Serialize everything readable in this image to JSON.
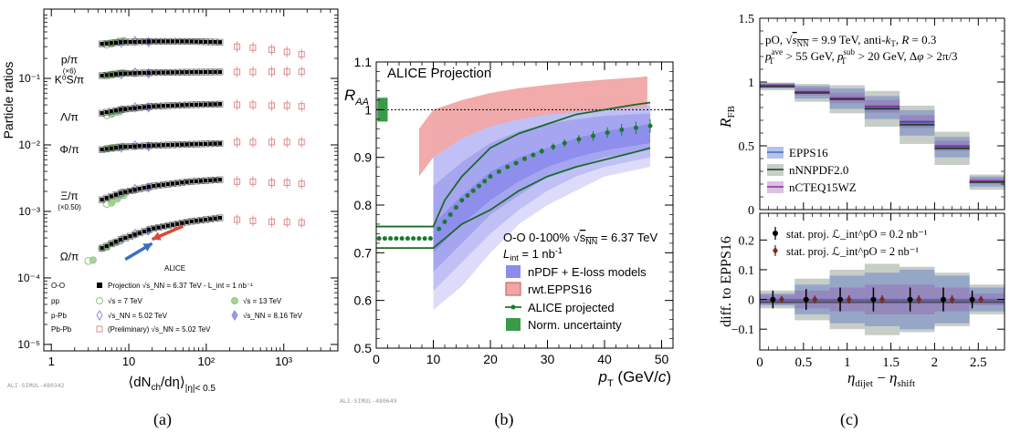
{
  "captions": [
    "(a)",
    "(b)",
    "(c)"
  ],
  "chart_data": [
    {
      "type": "scatter",
      "panel": "(a)",
      "ylabel": "Particle ratios",
      "xlabel": "⟨dN_ch/dη⟩_|η|< 0.5",
      "x_axis_text": {
        "main": "⟨dN",
        "sub1": "ch",
        "mid": "/dη⟩",
        "sub2": "|η|< 0.5"
      },
      "xscale": "log",
      "yscale": "log",
      "xlim": [
        0.8,
        5000
      ],
      "ylim": [
        8e-06,
        1.1
      ],
      "xticks": [
        {
          "v": 1,
          "label": "1"
        },
        {
          "v": 10,
          "label": "10"
        },
        {
          "v": 100,
          "label": "10²"
        },
        {
          "v": 1000,
          "label": "10³"
        }
      ],
      "yticks": [
        {
          "v": 1e-05,
          "label": "10⁻⁵"
        },
        {
          "v": 0.0001,
          "label": "10⁻⁴"
        },
        {
          "v": 0.001,
          "label": "10⁻³"
        },
        {
          "v": 0.01,
          "label": "10⁻²"
        },
        {
          "v": 0.1,
          "label": "10⁻¹"
        }
      ],
      "species_labels": [
        {
          "text": "p/π",
          "sub": "(×6)",
          "y": 0.19
        },
        {
          "text": "K⁰S/π",
          "sub": "",
          "y": 0.095
        },
        {
          "text": "Λ/π",
          "sub": "",
          "y": 0.026
        },
        {
          "text": "Φ/π",
          "sub": "",
          "y": 0.0085
        },
        {
          "text": "Ξ/π",
          "sub": "(×0.50)",
          "y": 0.0017
        },
        {
          "text": "Ω/π",
          "sub": "",
          "y": 0.00021
        }
      ],
      "bands": [
        {
          "name": "p/π",
          "pp": [
            [
              5.2,
              0.32
            ],
            [
              6.2,
              0.34
            ],
            [
              7.5,
              0.36
            ]
          ],
          "proj": [
            [
              4.5,
              0.33
            ],
            [
              8,
              0.35
            ],
            [
              20,
              0.36
            ],
            [
              60,
              0.36
            ],
            [
              150,
              0.35
            ]
          ],
          "pbpb": [
            [
              250,
              0.3
            ],
            [
              400,
              0.29
            ],
            [
              700,
              0.27
            ],
            [
              1100,
              0.25
            ],
            [
              1700,
              0.23
            ]
          ]
        },
        {
          "name": "K0S/π",
          "pp": [
            [
              5.2,
              0.11
            ],
            [
              6.2,
              0.115
            ],
            [
              7.5,
              0.118
            ]
          ],
          "proj": [
            [
              4.5,
              0.11
            ],
            [
              8,
              0.118
            ],
            [
              20,
              0.122
            ],
            [
              60,
              0.124
            ],
            [
              150,
              0.125
            ]
          ],
          "pbpb": [
            [
              250,
              0.125
            ],
            [
              400,
              0.125
            ],
            [
              700,
              0.126
            ],
            [
              1100,
              0.126
            ],
            [
              1700,
              0.126
            ]
          ]
        },
        {
          "name": "Λ/π",
          "pp": [
            [
              5.2,
              0.028
            ],
            [
              6.2,
              0.03
            ],
            [
              7.5,
              0.033
            ]
          ],
          "proj": [
            [
              4.5,
              0.03
            ],
            [
              8,
              0.034
            ],
            [
              20,
              0.038
            ],
            [
              60,
              0.04
            ],
            [
              150,
              0.041
            ]
          ],
          "pbpb": [
            [
              250,
              0.04
            ],
            [
              400,
              0.04
            ],
            [
              700,
              0.039
            ],
            [
              1100,
              0.039
            ],
            [
              1700,
              0.038
            ]
          ]
        },
        {
          "name": "Φ/π",
          "pp": [
            [
              5.2,
              0.0088
            ],
            [
              6.2,
              0.009
            ],
            [
              7.5,
              0.0092
            ]
          ],
          "proj": [
            [
              4.5,
              0.0085
            ],
            [
              8,
              0.0093
            ],
            [
              20,
              0.0098
            ],
            [
              60,
              0.0102
            ],
            [
              150,
              0.0105
            ]
          ],
          "pbpb": [
            [
              250,
              0.011
            ],
            [
              400,
              0.011
            ],
            [
              700,
              0.011
            ],
            [
              1100,
              0.011
            ],
            [
              1700,
              0.011
            ]
          ]
        },
        {
          "name": "Ξ/π",
          "pp": [
            [
              5.2,
              0.0013
            ],
            [
              6.2,
              0.0015
            ],
            [
              7.5,
              0.0017
            ]
          ],
          "proj": [
            [
              4.5,
              0.0015
            ],
            [
              8,
              0.0019
            ],
            [
              20,
              0.0024
            ],
            [
              60,
              0.0028
            ],
            [
              150,
              0.003
            ]
          ],
          "pbpb": [
            [
              250,
              0.0028
            ],
            [
              400,
              0.0028
            ],
            [
              700,
              0.0027
            ],
            [
              1100,
              0.0027
            ],
            [
              1700,
              0.0026
            ]
          ]
        },
        {
          "name": "Ω/π",
          "pp": [
            [
              3,
              0.00018
            ],
            [
              4.5,
              0.00028
            ],
            [
              6,
              0.00033
            ]
          ],
          "proj": [
            [
              4.5,
              0.00028
            ],
            [
              8,
              0.00038
            ],
            [
              20,
              0.00055
            ],
            [
              60,
              0.0007
            ],
            [
              150,
              0.0008
            ]
          ],
          "pbpb": [
            [
              250,
              0.00075
            ],
            [
              400,
              0.00072
            ],
            [
              700,
              0.0007
            ],
            [
              1100,
              0.00069
            ],
            [
              1700,
              0.00068
            ]
          ]
        }
      ],
      "arrows": [
        {
          "color": "#3a6fc4",
          "from": [
            9,
            0.00019
          ],
          "to": [
            20,
            0.00033
          ]
        },
        {
          "color": "#d84a3a",
          "from": [
            50,
            0.0006
          ],
          "to": [
            20,
            0.00038
          ]
        }
      ],
      "legend_title": "ALICE",
      "legend": [
        {
          "label": "O-O",
          "text1": "Projection",
          "text2": "√s_NN = 6.37 TeV  -  L_int = 1 nb⁻¹",
          "marker": "square-filled",
          "color": "#000000"
        },
        {
          "label": "pp",
          "text1": "√s = 7 TeV",
          "marker": "circle-open",
          "color": "#8fc47e",
          "text3": "√s = 13 TeV",
          "marker3": "circle-filled"
        },
        {
          "label": "p-Pb",
          "text1": "√s_NN = 5.02 TeV",
          "marker": "diamond-open",
          "color": "#8a8ae8",
          "text3": "√s_NN = 8.16 TeV",
          "marker3": "diamond-filled"
        },
        {
          "label": "Pb-Pb",
          "text1": "(Preliminary) √s_NN = 5.02 TeV",
          "marker": "square-open",
          "color": "#e08a8a"
        }
      ],
      "watermark": "ALI-SIMUL-480342"
    },
    {
      "type": "line",
      "panel": "(b)",
      "title": "ALICE Projection",
      "ylabel": "R_AA",
      "xlabel": "p_T (GeV/c)",
      "xlim": [
        0,
        52
      ],
      "ylim": [
        0.5,
        1.1
      ],
      "xticks": [
        0,
        10,
        20,
        30,
        40,
        50
      ],
      "yticks": [
        0.5,
        0.6,
        0.7,
        0.8,
        0.9,
        1,
        1.1
      ],
      "ytick_labels": [
        "0.5",
        "0.6",
        "0.7",
        "0.8",
        "0.9",
        "1",
        "1.1"
      ],
      "reference_line": 1.0,
      "annotation": {
        "line1": "O-O 0-100% √s_NN = 6.37 TeV",
        "line2": "L_int = 1 nb⁻¹"
      },
      "norm_uncertainty": {
        "x": [
          0.2,
          2.0
        ],
        "y": [
          0.975,
          1.025
        ],
        "color": "#3a9a4a"
      },
      "rwt_epps16": {
        "x": [
          7.5,
          10,
          15,
          20,
          25,
          30,
          35,
          40,
          45,
          47.5
        ],
        "low": [
          0.86,
          0.9,
          0.94,
          0.965,
          0.98,
          0.99,
          0.995,
          1.0,
          1.003,
          1.005
        ],
        "high": [
          0.96,
          1.0,
          1.02,
          1.035,
          1.045,
          1.052,
          1.058,
          1.063,
          1.067,
          1.07
        ],
        "color": "#f0a6a6"
      },
      "nPDF_bands": [
        {
          "low": [
            0.58,
            0.63,
            0.7,
            0.76,
            0.8,
            0.83,
            0.86,
            0.88
          ],
          "high": [
            0.98,
            0.99,
            1.0,
            1.005,
            1.01,
            1.012,
            1.014,
            1.015
          ]
        },
        {
          "low": [
            0.62,
            0.68,
            0.74,
            0.79,
            0.83,
            0.86,
            0.88,
            0.9
          ],
          "high": [
            0.9,
            0.94,
            0.97,
            0.985,
            0.995,
            1.0,
            1.005,
            1.008
          ]
        },
        {
          "low": [
            0.66,
            0.72,
            0.78,
            0.82,
            0.86,
            0.88,
            0.9,
            0.915
          ],
          "high": [
            0.84,
            0.89,
            0.93,
            0.955,
            0.97,
            0.98,
            0.987,
            0.992
          ]
        }
      ],
      "nPDF_x": [
        10,
        15,
        20,
        25,
        30,
        35,
        40,
        48
      ],
      "curve_x": [
        0,
        10,
        12,
        15,
        20,
        25,
        30,
        35,
        40,
        45,
        48
      ],
      "curve_central": [
        0.73,
        0.73,
        0.77,
        0.8,
        0.85,
        0.88,
        0.91,
        0.93,
        0.95,
        0.96,
        0.965
      ],
      "curve_upper": [
        0.755,
        0.755,
        0.81,
        0.86,
        0.92,
        0.95,
        0.97,
        0.99,
        1.0,
        1.01,
        1.015
      ],
      "curve_lower": [
        0.71,
        0.71,
        0.73,
        0.76,
        0.79,
        0.83,
        0.86,
        0.88,
        0.895,
        0.91,
        0.92
      ],
      "alice_projected": {
        "x": [
          0.5,
          1.5,
          2.5,
          3.5,
          4.5,
          5.5,
          6.5,
          7.5,
          8.5,
          9.5,
          11,
          12,
          13,
          14,
          15,
          16,
          17,
          18,
          19,
          20,
          21.5,
          23,
          24.5,
          26,
          27.5,
          29,
          31,
          33,
          35.5,
          38,
          40.5,
          43,
          45.5,
          48
        ],
        "y": [
          0.73,
          0.73,
          0.73,
          0.73,
          0.73,
          0.73,
          0.73,
          0.73,
          0.73,
          0.73,
          0.75,
          0.765,
          0.78,
          0.795,
          0.81,
          0.82,
          0.83,
          0.84,
          0.85,
          0.86,
          0.87,
          0.88,
          0.888,
          0.897,
          0.905,
          0.913,
          0.922,
          0.93,
          0.938,
          0.945,
          0.952,
          0.958,
          0.962,
          0.966
        ],
        "err": [
          0,
          0,
          0,
          0,
          0,
          0,
          0,
          0,
          0,
          0,
          0,
          0,
          0,
          0,
          0,
          0,
          0,
          0,
          0,
          0,
          0,
          0,
          0,
          0,
          0,
          0.006,
          0.007,
          0.008,
          0.009,
          0.01,
          0.011,
          0.012,
          0.013,
          0.014
        ]
      },
      "legend": [
        {
          "label": "nPDF + E-loss models",
          "color": "#8b8bec",
          "kind": "box"
        },
        {
          "label": "rwt.EPPS16",
          "color": "#f0a6a6",
          "kind": "box-edged"
        },
        {
          "label": "ALICE projected",
          "color": "#1a7a2a",
          "kind": "line-dot"
        },
        {
          "label": "Norm. uncertainty",
          "color": "#3a9a4a",
          "kind": "box"
        }
      ],
      "watermark": "ALI-SIMUL-480649"
    },
    {
      "type": "bar",
      "panel": "(c)",
      "annotation": {
        "line1": "pO, √s_NN = 9.9 TeV, anti-k_T, R = 0.3",
        "line2": "p_T^ave > 55 GeV, p_T^sub > 20 GeV, Δφ > 2π/3"
      },
      "top": {
        "ylabel": "R_FB",
        "ylim": [
          0,
          1.5
        ],
        "yticks": [
          0,
          0.5,
          1,
          1.5
        ],
        "ytick_labels": [
          "0",
          "0.5",
          "1",
          "1.5"
        ],
        "bins": [
          [
            0,
            0.4
          ],
          [
            0.4,
            0.8
          ],
          [
            0.8,
            1.2
          ],
          [
            1.2,
            1.6
          ],
          [
            1.6,
            2.0
          ],
          [
            2.0,
            2.4
          ],
          [
            2.4,
            2.8
          ]
        ],
        "series": [
          {
            "name": "EPPS16",
            "color": "#3a6fc4",
            "values": [
              0.97,
              0.92,
              0.87,
              0.8,
              0.68,
              0.49,
              0.22
            ],
            "band": [
              0.02,
              0.05,
              0.08,
              0.09,
              0.1,
              0.08,
              0.04
            ]
          },
          {
            "name": "nNNPDF2.0",
            "color": "#1a3a1a",
            "values": [
              0.965,
              0.915,
              0.865,
              0.79,
              0.665,
              0.48,
              0.215
            ],
            "band": [
              0.03,
              0.07,
              0.11,
              0.14,
              0.15,
              0.13,
              0.06
            ]
          },
          {
            "name": "nCTEQ15WZ",
            "color": "#8a2a9a",
            "values": [
              0.975,
              0.925,
              0.875,
              0.81,
              0.69,
              0.5,
              0.225
            ],
            "band": [
              0.015,
              0.03,
              0.04,
              0.05,
              0.05,
              0.04,
              0.02
            ]
          }
        ]
      },
      "bottom": {
        "ylabel": "diff. to EPPS16",
        "xlabel": "η_dijet − η_shift",
        "ylim": [
          -0.17,
          0.29
        ],
        "yticks": [
          -0.1,
          0,
          0.1,
          0.2
        ],
        "ytick_labels": [
          "−0.1",
          "0",
          "0.1",
          "0.2"
        ],
        "xlim": [
          0,
          2.8
        ],
        "xticks": [
          0,
          0.5,
          1,
          1.5,
          2,
          2.5
        ],
        "xtick_labels": [
          "0",
          "0.5",
          "1",
          "1.5",
          "2",
          "2.5"
        ],
        "bands": [
          {
            "color": "#3a6fc4",
            "half": [
              0.02,
              0.05,
              0.08,
              0.09,
              0.1,
              0.08,
              0.04
            ]
          },
          {
            "color": "#1a3a1a",
            "half": [
              0.03,
              0.07,
              0.1,
              0.12,
              0.11,
              0.09,
              0.05
            ]
          },
          {
            "color": "#8a2a9a",
            "half": [
              0.015,
              0.03,
              0.04,
              0.05,
              0.05,
              0.04,
              0.02
            ]
          }
        ],
        "stat1": {
          "label": "stat. proj. ℒ_int^pO = 0.2 nb⁻¹",
          "x": [
            0.15,
            0.53,
            0.92,
            1.3,
            1.72,
            2.1,
            2.43
          ],
          "y": [
            0,
            0,
            0,
            0,
            0,
            0,
            0
          ],
          "err": [
            0.03,
            0.035,
            0.04,
            0.04,
            0.04,
            0.04,
            0.03
          ],
          "color": "#000000"
        },
        "stat2": {
          "label": "stat. proj. ℒ_int^pO = 2 nb⁻¹",
          "x": [
            0.25,
            0.63,
            1.02,
            1.4,
            1.82,
            2.2,
            2.53
          ],
          "y": [
            0,
            0,
            0,
            0,
            0,
            0,
            0
          ],
          "err": [
            0.012,
            0.013,
            0.014,
            0.014,
            0.014,
            0.014,
            0.012
          ],
          "color": "#7a2a2a"
        }
      }
    }
  ]
}
